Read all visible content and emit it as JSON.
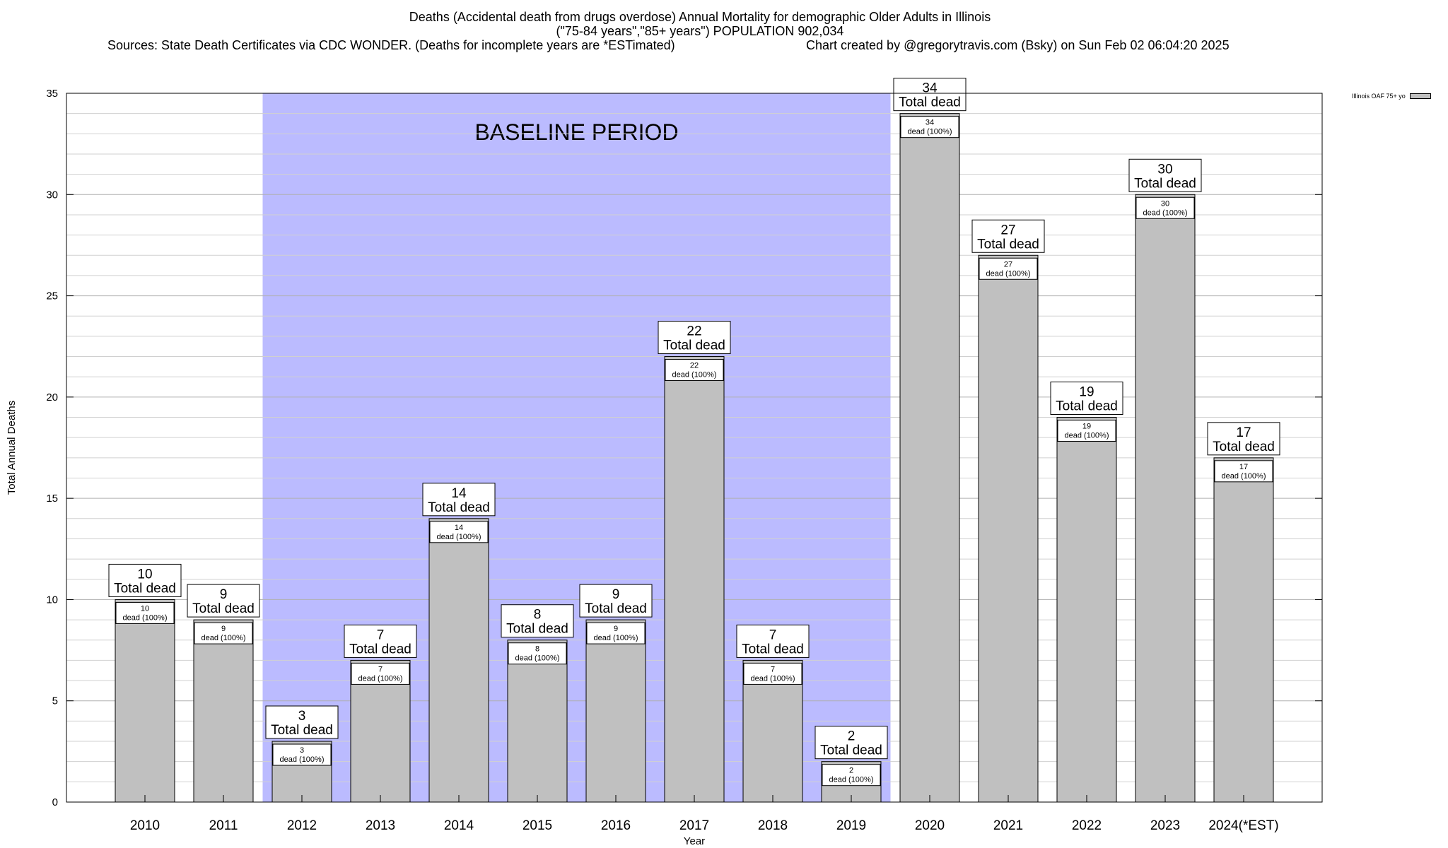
{
  "header": {
    "title": "Deaths (Accidental death from drugs overdose) Annual Mortality for demographic Older Adults in Illinois",
    "subtitle": "(\"75-84 years\",\"85+ years\") POPULATION 902,034",
    "sources": "Sources: State Death Certificates via CDC WONDER. (Deaths for incomplete years are *ESTimated)",
    "credit": "Chart created by @gregorytravis.com (Bsky) on Sun Feb 02 06:04:20 2025"
  },
  "chart_data": {
    "type": "bar",
    "xlabel": "Year",
    "ylabel": "Total Annual Deaths",
    "ylim": [
      0,
      35
    ],
    "yticks": [
      0,
      5,
      10,
      15,
      20,
      25,
      30,
      35
    ],
    "grid": true,
    "legend_position": "top-right",
    "categories": [
      "2010",
      "2011",
      "2012",
      "2013",
      "2014",
      "2015",
      "2016",
      "2017",
      "2018",
      "2019",
      "2020",
      "2021",
      "2022",
      "2023",
      "2024(*EST)"
    ],
    "series": [
      {
        "name": "Illinois OAF 75+ yo",
        "color": "#c0c0c0",
        "values": [
          10,
          9,
          3,
          7,
          14,
          8,
          9,
          22,
          7,
          2,
          34,
          27,
          19,
          30,
          17
        ]
      }
    ],
    "outer_label_suffix": "Total dead",
    "inner_label_suffix": "dead (100%)",
    "annotations": [
      {
        "type": "shaded-region",
        "text": "BASELINE PERIOD",
        "from_category": "2012",
        "to_category": "2019",
        "color": "#bbbbff"
      }
    ]
  }
}
